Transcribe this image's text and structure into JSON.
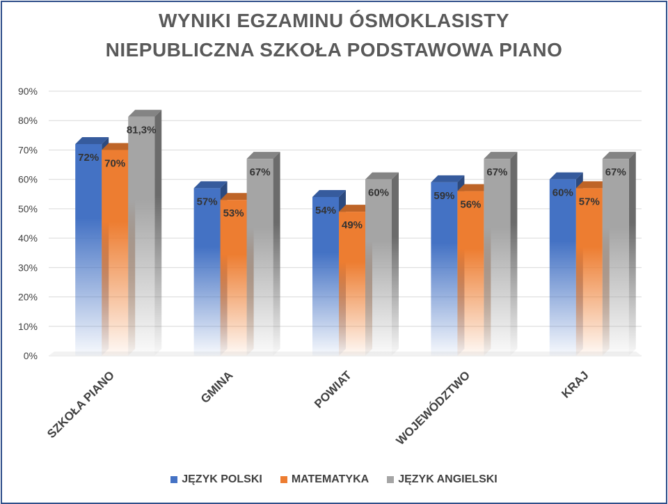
{
  "chart_data": {
    "type": "bar",
    "title": "WYNIKI EGZAMINU ÓSMOKLASISTY",
    "subtitle": "NIEPUBLICZNA SZKOŁA PODSTAWOWA PIANO",
    "categories": [
      "SZKOŁA PIANO",
      "GMINA",
      "POWIAT",
      "WOJEWÓDZTWO",
      "KRAJ"
    ],
    "series": [
      {
        "name": "JĘZYK POLSKI",
        "color": "#4472c4",
        "values": [
          72,
          57,
          54,
          59,
          60
        ],
        "labels": [
          "72%",
          "57%",
          "54%",
          "59%",
          "60%"
        ]
      },
      {
        "name": "MATEMATYKA",
        "color": "#ed7d31",
        "values": [
          70,
          53,
          49,
          56,
          57
        ],
        "labels": [
          "70%",
          "53%",
          "49%",
          "56%",
          "57%"
        ]
      },
      {
        "name": "JĘZYK ANGIELSKI",
        "color": "#a5a5a5",
        "values": [
          81.3,
          67,
          60,
          67,
          67
        ],
        "labels": [
          "81,3%",
          "67%",
          "60%",
          "67%",
          "67%"
        ]
      }
    ],
    "yticks": [
      "0%",
      "10%",
      "20%",
      "30%",
      "40%",
      "50%",
      "60%",
      "70%",
      "80%",
      "90%"
    ],
    "ylim": [
      0,
      90
    ],
    "grid": true,
    "legend_position": "bottom"
  }
}
